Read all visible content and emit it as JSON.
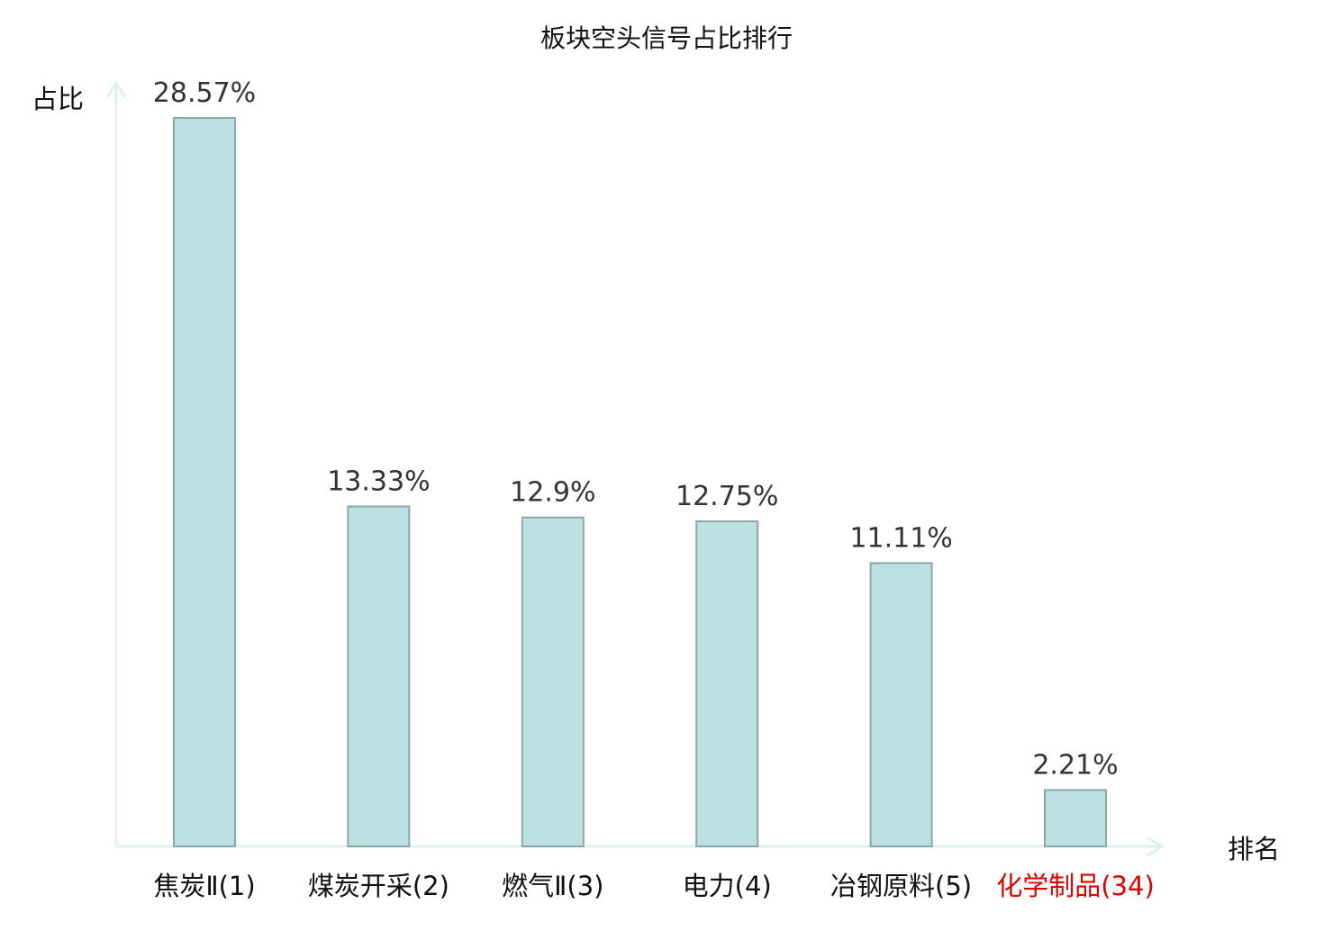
{
  "chart_data": {
    "type": "bar",
    "title": "板块空头信号占比排行",
    "ylabel": "占比",
    "xlabel": "排名",
    "categories": [
      "焦炭Ⅱ(1)",
      "煤炭开采(2)",
      "燃气Ⅱ(3)",
      "电力(4)",
      "冶钢原料(5)",
      "化学制品(34)"
    ],
    "values": [
      28.57,
      13.33,
      12.9,
      12.75,
      11.11,
      2.21
    ],
    "data_labels": [
      "28.57%",
      "13.33%",
      "12.9%",
      "12.75%",
      "11.11%",
      "2.21%"
    ],
    "highlight_categories": [
      "化学制品(34)"
    ],
    "ylim": [
      0,
      30
    ],
    "grid": false,
    "legend": "none",
    "colors": {
      "bar_fill": "#bde0e3",
      "bar_stroke": "#8aa8ab",
      "axis": "#dff0ee",
      "label_text": "#333333",
      "category_text": "#111111",
      "highlight_text": "#e00000"
    }
  }
}
